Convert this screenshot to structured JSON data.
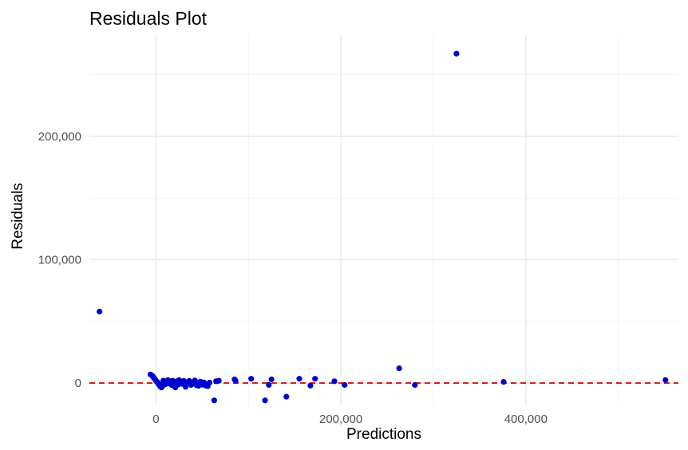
{
  "chart_data": {
    "type": "scatter",
    "title": "Residuals Plot",
    "xlabel": "Predictions",
    "ylabel": "Residuals",
    "xlim": [
      -72000,
      565000
    ],
    "ylim": [
      -18000,
      282000
    ],
    "x_ticks": [
      0,
      200000,
      400000
    ],
    "x_tick_labels": [
      "0",
      "200,000",
      "400,000"
    ],
    "y_ticks": [
      0,
      100000,
      200000
    ],
    "y_tick_labels": [
      "0",
      "100,000",
      "200,000"
    ],
    "grid": true,
    "reference_line": {
      "y": 0,
      "style": "dashed",
      "color": "#dd1111"
    },
    "point_color": "#0000cc",
    "points": [
      [
        -61000,
        58000
      ],
      [
        -6000,
        7000
      ],
      [
        -4000,
        6000
      ],
      [
        -3000,
        5000
      ],
      [
        -2000,
        4000
      ],
      [
        -1000,
        3000
      ],
      [
        0,
        2000
      ],
      [
        1000,
        1000
      ],
      [
        2000,
        500
      ],
      [
        3000,
        -1000
      ],
      [
        4000,
        -2000
      ],
      [
        5000,
        -3000
      ],
      [
        6000,
        -3500
      ],
      [
        7000,
        -2500
      ],
      [
        8000,
        2000
      ],
      [
        9000,
        1500
      ],
      [
        10000,
        -1000
      ],
      [
        11000,
        500
      ],
      [
        12000,
        1000
      ],
      [
        13000,
        2500
      ],
      [
        14000,
        1200
      ],
      [
        15000,
        -500
      ],
      [
        16000,
        300
      ],
      [
        17000,
        -1500
      ],
      [
        18000,
        2000
      ],
      [
        19000,
        1000
      ],
      [
        20000,
        -2000
      ],
      [
        21000,
        -3500
      ],
      [
        22000,
        800
      ],
      [
        23000,
        1600
      ],
      [
        24000,
        -1200
      ],
      [
        25000,
        2400
      ],
      [
        26000,
        1000
      ],
      [
        28000,
        -600
      ],
      [
        30000,
        1800
      ],
      [
        32000,
        -3000
      ],
      [
        34000,
        900
      ],
      [
        36000,
        1800
      ],
      [
        38000,
        -1500
      ],
      [
        40000,
        600
      ],
      [
        42000,
        2200
      ],
      [
        44000,
        -1800
      ],
      [
        46000,
        -2200
      ],
      [
        48000,
        1200
      ],
      [
        50000,
        -1300
      ],
      [
        52000,
        500
      ],
      [
        54000,
        -2100
      ],
      [
        56000,
        -2500
      ],
      [
        58000,
        400
      ],
      [
        63000,
        -14000
      ],
      [
        65000,
        1500
      ],
      [
        68000,
        2000
      ],
      [
        85000,
        3000
      ],
      [
        86000,
        2000
      ],
      [
        103000,
        3500
      ],
      [
        118000,
        -14000
      ],
      [
        122000,
        -1500
      ],
      [
        125000,
        3000
      ],
      [
        141000,
        -11000
      ],
      [
        155000,
        3500
      ],
      [
        167000,
        -2000
      ],
      [
        172000,
        3500
      ],
      [
        193000,
        1500
      ],
      [
        204000,
        -1500
      ],
      [
        263000,
        12000
      ],
      [
        280000,
        -1500
      ],
      [
        325000,
        267000
      ],
      [
        376000,
        1000
      ],
      [
        551000,
        2500
      ]
    ]
  }
}
